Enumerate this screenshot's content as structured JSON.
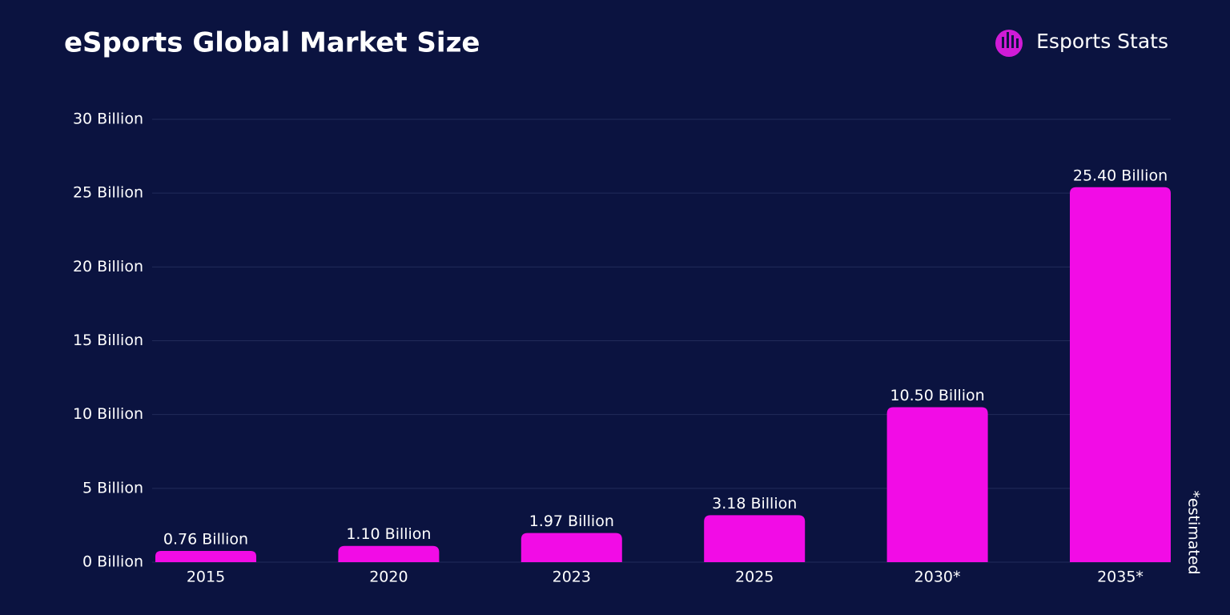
{
  "chart_data": {
    "type": "bar",
    "title": "eSports Global Market Size",
    "brand": "Esports Stats",
    "note": "*estimated",
    "categories": [
      "2015",
      "2020",
      "2023",
      "2025",
      "2030*",
      "2035*"
    ],
    "values": [
      0.76,
      1.1,
      1.97,
      3.18,
      10.5,
      25.4
    ],
    "value_labels": [
      "0.76 Billion",
      "1.10 Billion",
      "1.97 Billion",
      "3.18 Billion",
      "10.50 Billion",
      "25.40 Billion"
    ],
    "color": "#f20ce6",
    "ylim": [
      0,
      30
    ],
    "yticks": [
      {
        "value": 0,
        "label": "0 Billion"
      },
      {
        "value": 5,
        "label": "5 Billion"
      },
      {
        "value": 10,
        "label": "10 Billion"
      },
      {
        "value": 15,
        "label": "15 Billion"
      },
      {
        "value": 20,
        "label": "20 Billion"
      },
      {
        "value": 25,
        "label": "25 Billion"
      },
      {
        "value": 30,
        "label": "30 Billion"
      }
    ],
    "grid": true
  }
}
